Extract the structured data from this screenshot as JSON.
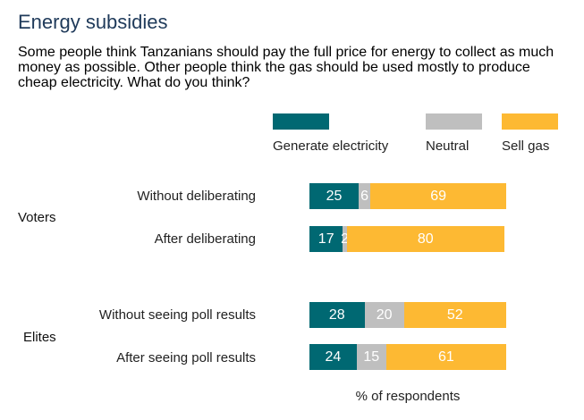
{
  "chart_data": {
    "type": "bar",
    "orientation": "horizontal",
    "stacked": true,
    "title": "Energy subsidies",
    "subtitle": "Some people think Tanzanians should pay the full price for energy to collect as much money as possible. Other people think the gas should be used mostly to produce cheap electricity. What do you think?",
    "xlabel": "% of respondents",
    "xlim": [
      0,
      100
    ],
    "legend_position": "top-right",
    "groups": [
      {
        "label": "Voters",
        "rows": [
          0,
          1
        ]
      },
      {
        "label": "Elites",
        "rows": [
          2,
          3
        ]
      }
    ],
    "categories": [
      "Without deliberating",
      "After deliberating",
      "Without seeing poll results",
      "After seeing poll results"
    ],
    "series": [
      {
        "name": "Generate electricity",
        "color": "#006872",
        "values": [
          25,
          17,
          28,
          24
        ]
      },
      {
        "name": "Neutral",
        "color": "#bfbfbf",
        "values": [
          6,
          2,
          20,
          15
        ]
      },
      {
        "name": "Sell gas",
        "color": "#fdb933",
        "values": [
          69,
          80,
          52,
          61
        ]
      }
    ]
  }
}
